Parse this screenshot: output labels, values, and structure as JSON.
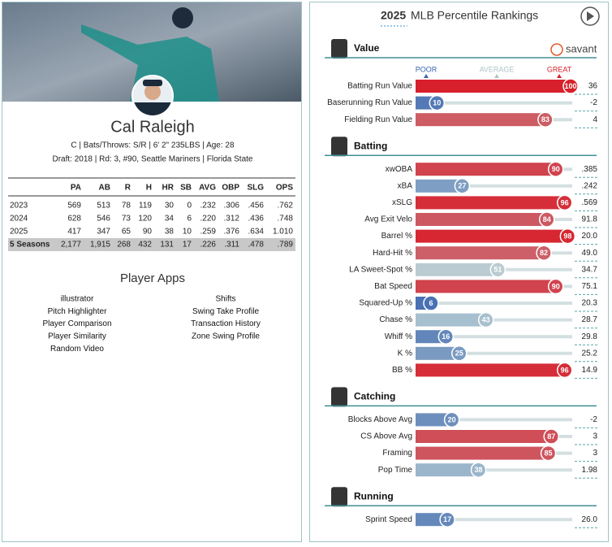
{
  "player": {
    "name": "Cal Raleigh",
    "bio": "C | Bats/Throws: S/R | 6' 2\" 235LBS | Age: 28",
    "draft": "Draft: 2018 | Rd: 3, #90, Seattle Mariners | Florida State"
  },
  "stats_table": {
    "columns": [
      "PA",
      "AB",
      "R",
      "H",
      "HR",
      "SB",
      "AVG",
      "OBP",
      "SLG",
      "OPS"
    ],
    "rows": [
      [
        "2023",
        "569",
        "513",
        "78",
        "119",
        "30",
        "0",
        ".232",
        ".306",
        ".456",
        ".762"
      ],
      [
        "2024",
        "628",
        "546",
        "73",
        "120",
        "34",
        "6",
        ".220",
        ".312",
        ".436",
        ".748"
      ],
      [
        "2025",
        "417",
        "347",
        "65",
        "90",
        "38",
        "10",
        ".259",
        ".376",
        ".634",
        "1.010"
      ],
      [
        "5 Seasons",
        "2,177",
        "1,915",
        "268",
        "432",
        "131",
        "17",
        ".226",
        ".311",
        ".478",
        ".789"
      ]
    ]
  },
  "apps": {
    "title": "Player Apps",
    "left": [
      "illustrator",
      "Pitch Highlighter",
      "Player Comparison",
      "Player Similarity",
      "Random Video"
    ],
    "right": [
      "Shifts",
      "Swing Take Profile",
      "Transaction History",
      "Zone Swing Profile"
    ]
  },
  "rankings": {
    "year": "2025",
    "title": "MLB Percentile Rankings",
    "brand": "savant",
    "scale_labels": [
      "POOR",
      "AVERAGE",
      "GREAT"
    ],
    "color_scale": [
      "#3a64ae",
      "#b9cfd4",
      "#d7202b"
    ],
    "sections": [
      {
        "name": "Value",
        "rows": [
          {
            "label": "Batting Run Value",
            "percentile": 100,
            "stat": "36"
          },
          {
            "label": "Baserunning Run Value",
            "percentile": 10,
            "stat": "-2"
          },
          {
            "label": "Fielding Run Value",
            "percentile": 83,
            "stat": "4"
          }
        ]
      },
      {
        "name": "Batting",
        "rows": [
          {
            "label": "xwOBA",
            "percentile": 90,
            "stat": ".385"
          },
          {
            "label": "xBA",
            "percentile": 27,
            "stat": ".242"
          },
          {
            "label": "xSLG",
            "percentile": 96,
            "stat": ".569"
          },
          {
            "label": "Avg Exit Velo",
            "percentile": 84,
            "stat": "91.8"
          },
          {
            "label": "Barrel %",
            "percentile": 98,
            "stat": "20.0"
          },
          {
            "label": "Hard-Hit %",
            "percentile": 82,
            "stat": "49.0"
          },
          {
            "label": "LA Sweet-Spot %",
            "percentile": 51,
            "stat": "34.7"
          },
          {
            "label": "Bat Speed",
            "percentile": 90,
            "stat": "75.1"
          },
          {
            "label": "Squared-Up %",
            "percentile": 6,
            "stat": "20.3"
          },
          {
            "label": "Chase %",
            "percentile": 43,
            "stat": "28.7"
          },
          {
            "label": "Whiff %",
            "percentile": 16,
            "stat": "29.8"
          },
          {
            "label": "K %",
            "percentile": 25,
            "stat": "25.2"
          },
          {
            "label": "BB %",
            "percentile": 96,
            "stat": "14.9"
          }
        ]
      },
      {
        "name": "Catching",
        "rows": [
          {
            "label": "Blocks Above Avg",
            "percentile": 20,
            "stat": "-2"
          },
          {
            "label": "CS Above Avg",
            "percentile": 87,
            "stat": "3"
          },
          {
            "label": "Framing",
            "percentile": 85,
            "stat": "3"
          },
          {
            "label": "Pop Time",
            "percentile": 38,
            "stat": "1.98"
          }
        ]
      },
      {
        "name": "Running",
        "rows": [
          {
            "label": "Sprint Speed",
            "percentile": 17,
            "stat": "26.0"
          }
        ]
      }
    ]
  }
}
